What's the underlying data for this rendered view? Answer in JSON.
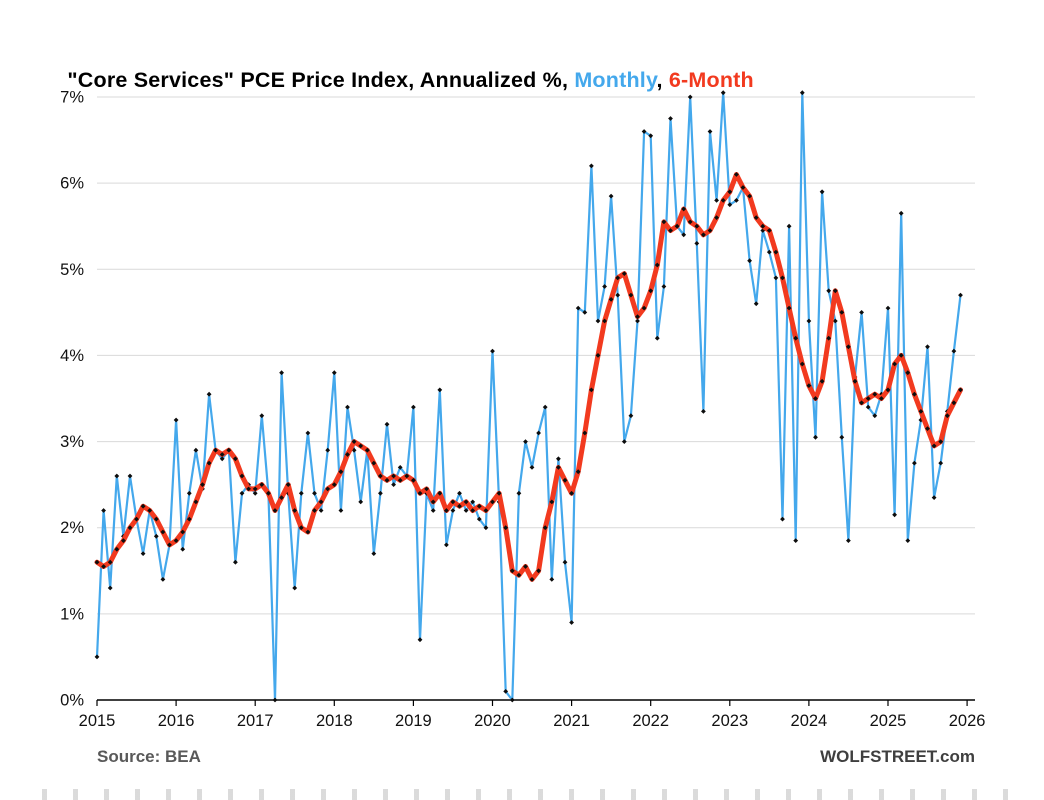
{
  "title": {
    "main": "\"Core Services\" PCE Price Index, Annualized %, ",
    "monthly_label": "Monthly",
    "separator": ", ",
    "six_month_label": "6-Month"
  },
  "footer": {
    "source": "Source: BEA",
    "site": "WOLFSTREET.com"
  },
  "colors": {
    "monthly": "#44A8EC",
    "six_month": "#F23A1F",
    "marker": "#0D0D0D",
    "grid": "#D9D9D9",
    "axis": "#000000",
    "title_text": "#000000",
    "source_text": "#595959",
    "site_text": "#3F3F3F"
  },
  "chart_data": {
    "type": "line",
    "title": "\"Core Services\" PCE Price Index, Annualized %",
    "x_unit": "month",
    "x_start": "2015-01",
    "x_end": "2025-12",
    "xlim": [
      2015,
      2026.1
    ],
    "ylim": [
      0,
      7
    ],
    "grid": true,
    "legend_position": "in-title",
    "y_ticks": [
      {
        "value": 0,
        "label": "0%"
      },
      {
        "value": 1,
        "label": "1%"
      },
      {
        "value": 2,
        "label": "2%"
      },
      {
        "value": 3,
        "label": "3%"
      },
      {
        "value": 4,
        "label": "4%"
      },
      {
        "value": 5,
        "label": "5%"
      },
      {
        "value": 6,
        "label": "6%"
      },
      {
        "value": 7,
        "label": "7%"
      }
    ],
    "x_ticks": [
      {
        "value": 2015,
        "label": "2015"
      },
      {
        "value": 2016,
        "label": "2016"
      },
      {
        "value": 2017,
        "label": "2017"
      },
      {
        "value": 2018,
        "label": "2018"
      },
      {
        "value": 2019,
        "label": "2019"
      },
      {
        "value": 2020,
        "label": "2020"
      },
      {
        "value": 2021,
        "label": "2021"
      },
      {
        "value": 2022,
        "label": "2022"
      },
      {
        "value": 2023,
        "label": "2023"
      },
      {
        "value": 2024,
        "label": "2024"
      },
      {
        "value": 2025,
        "label": "2025"
      },
      {
        "value": 2026,
        "label": "2026"
      }
    ],
    "series": [
      {
        "name": "Monthly",
        "color": "#44A8EC",
        "line_width": 2.2,
        "values": [
          0.5,
          2.2,
          1.3,
          2.6,
          1.9,
          2.6,
          2.1,
          1.7,
          2.2,
          1.9,
          1.4,
          1.8,
          3.25,
          1.75,
          2.4,
          2.9,
          2.45,
          3.55,
          2.9,
          2.8,
          2.9,
          1.6,
          2.4,
          2.5,
          2.4,
          3.3,
          2.4,
          0.0,
          3.8,
          2.4,
          1.3,
          2.4,
          3.1,
          2.4,
          2.2,
          2.9,
          3.8,
          2.2,
          3.4,
          2.9,
          2.3,
          2.9,
          1.7,
          2.4,
          3.2,
          2.5,
          2.7,
          2.6,
          3.4,
          0.7,
          2.4,
          2.2,
          3.6,
          1.8,
          2.2,
          2.4,
          2.2,
          2.3,
          2.1,
          2.0,
          4.05,
          2.3,
          0.1,
          0.0,
          2.4,
          3.0,
          2.7,
          3.1,
          3.4,
          1.4,
          2.8,
          1.6,
          0.9,
          4.55,
          4.5,
          6.2,
          4.4,
          4.8,
          5.85,
          4.7,
          3.0,
          3.3,
          4.4,
          6.6,
          6.55,
          4.2,
          4.8,
          6.75,
          5.5,
          5.4,
          7.0,
          5.3,
          3.35,
          6.6,
          5.8,
          7.05,
          5.75,
          5.8,
          5.95,
          5.1,
          4.6,
          5.45,
          5.2,
          4.9,
          2.1,
          5.5,
          1.85,
          7.05,
          4.4,
          3.05,
          5.9,
          4.75,
          4.4,
          3.05,
          1.85,
          3.75,
          4.5,
          3.4,
          3.3,
          3.55,
          4.55,
          2.15,
          5.65,
          1.85,
          2.75,
          3.25,
          4.1,
          2.35,
          2.75,
          3.35,
          4.05,
          4.7
        ]
      },
      {
        "name": "6-Month",
        "color": "#F23A1F",
        "line_width": 5,
        "values": [
          1.6,
          1.55,
          1.6,
          1.75,
          1.85,
          2.0,
          2.1,
          2.25,
          2.2,
          2.1,
          1.95,
          1.8,
          1.85,
          1.95,
          2.1,
          2.3,
          2.5,
          2.75,
          2.9,
          2.85,
          2.9,
          2.8,
          2.6,
          2.45,
          2.45,
          2.5,
          2.4,
          2.2,
          2.35,
          2.5,
          2.2,
          2.0,
          1.95,
          2.2,
          2.3,
          2.45,
          2.5,
          2.65,
          2.85,
          3.0,
          2.95,
          2.9,
          2.75,
          2.6,
          2.55,
          2.6,
          2.55,
          2.6,
          2.55,
          2.4,
          2.45,
          2.3,
          2.4,
          2.2,
          2.3,
          2.25,
          2.3,
          2.2,
          2.25,
          2.2,
          2.3,
          2.4,
          2.0,
          1.5,
          1.45,
          1.55,
          1.4,
          1.5,
          2.0,
          2.3,
          2.7,
          2.55,
          2.4,
          2.65,
          3.1,
          3.6,
          4.0,
          4.4,
          4.65,
          4.9,
          4.95,
          4.7,
          4.45,
          4.55,
          4.75,
          5.05,
          5.55,
          5.45,
          5.5,
          5.7,
          5.55,
          5.5,
          5.4,
          5.45,
          5.6,
          5.8,
          5.9,
          6.1,
          5.95,
          5.85,
          5.6,
          5.5,
          5.45,
          5.2,
          4.9,
          4.55,
          4.2,
          3.9,
          3.65,
          3.5,
          3.7,
          4.2,
          4.75,
          4.5,
          4.1,
          3.7,
          3.45,
          3.5,
          3.55,
          3.5,
          3.6,
          3.9,
          4.0,
          3.8,
          3.55,
          3.35,
          3.15,
          2.95,
          3.0,
          3.3,
          3.45,
          3.6
        ]
      }
    ]
  }
}
